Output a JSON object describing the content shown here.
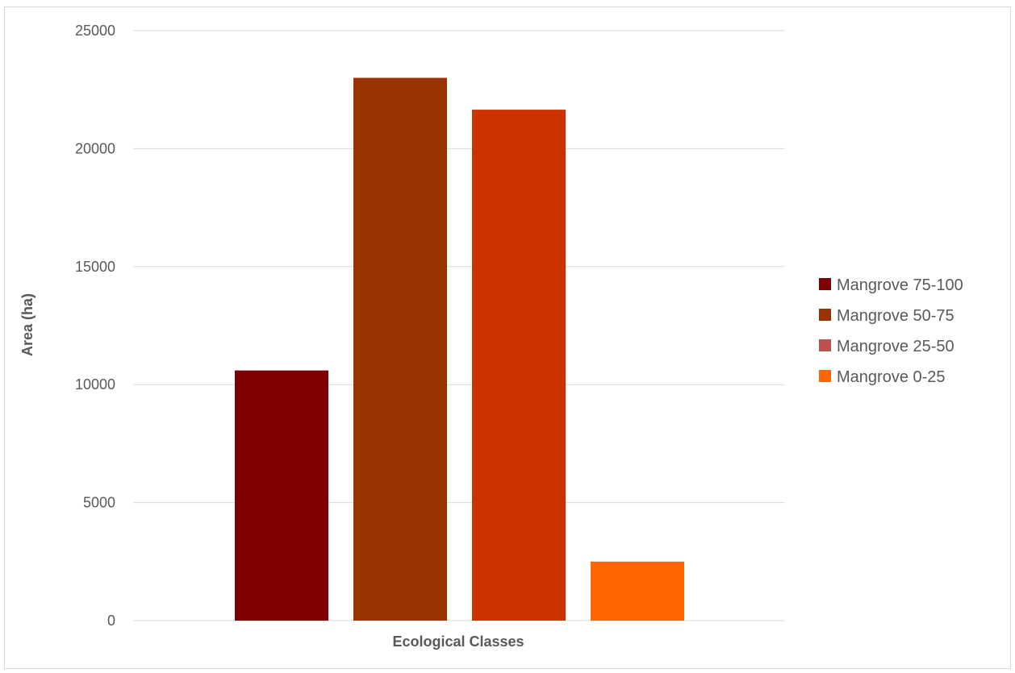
{
  "chart_data": {
    "type": "bar",
    "title": "",
    "xlabel": "Ecological Classes",
    "ylabel": "Area (ha)",
    "ylim": [
      0,
      25000
    ],
    "yticks": [
      0,
      5000,
      10000,
      15000,
      20000,
      25000
    ],
    "grid": true,
    "legend_position": "right",
    "series": [
      {
        "name": "Mangrove 75-100",
        "value": 10600,
        "color": "#7f0000"
      },
      {
        "name": "Mangrove 50-75",
        "value": 23000,
        "color": "#993300"
      },
      {
        "name": "Mangrove 25-50",
        "value": 21650,
        "color": "#cc3300"
      },
      {
        "name": "Mangrove 0-25",
        "value": 2500,
        "color": "#ff6600"
      }
    ],
    "legend": [
      {
        "name": "Mangrove 75-100",
        "color": "#7f0000"
      },
      {
        "name": "Mangrove 50-75",
        "color": "#993300"
      },
      {
        "name": "Mangrove 25-50",
        "color": "#c0504d"
      },
      {
        "name": "Mangrove 0-25",
        "color": "#ff6600"
      }
    ]
  }
}
